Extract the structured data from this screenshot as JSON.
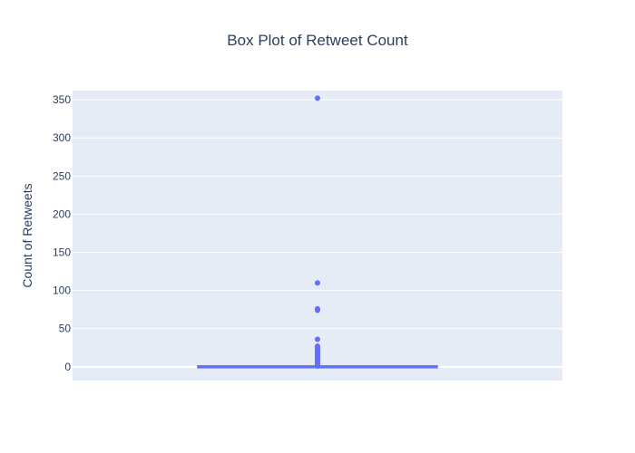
{
  "chart_data": {
    "type": "box",
    "title": "Box Plot of Retweet Count",
    "ylabel": "Count of Retweets",
    "xlabel": "",
    "ylim": [
      -18,
      362
    ],
    "yticks": [
      0,
      50,
      100,
      150,
      200,
      250,
      300,
      350
    ],
    "grid": true,
    "box": {
      "min": 0,
      "q1": 0,
      "median": 0,
      "q3": 0,
      "max": 0
    },
    "outliers": [
      1,
      2,
      3,
      4,
      5,
      6,
      7,
      8,
      9,
      10,
      11,
      12,
      13,
      14,
      15,
      16,
      17,
      18,
      19,
      20,
      21,
      22,
      23,
      24,
      25,
      26,
      27,
      36,
      74,
      76,
      110,
      352
    ],
    "colors": {
      "plot_bg": "#e5ecf6",
      "grid": "#ffffff",
      "series": "#636efa",
      "text": "#2a3f5f"
    }
  }
}
